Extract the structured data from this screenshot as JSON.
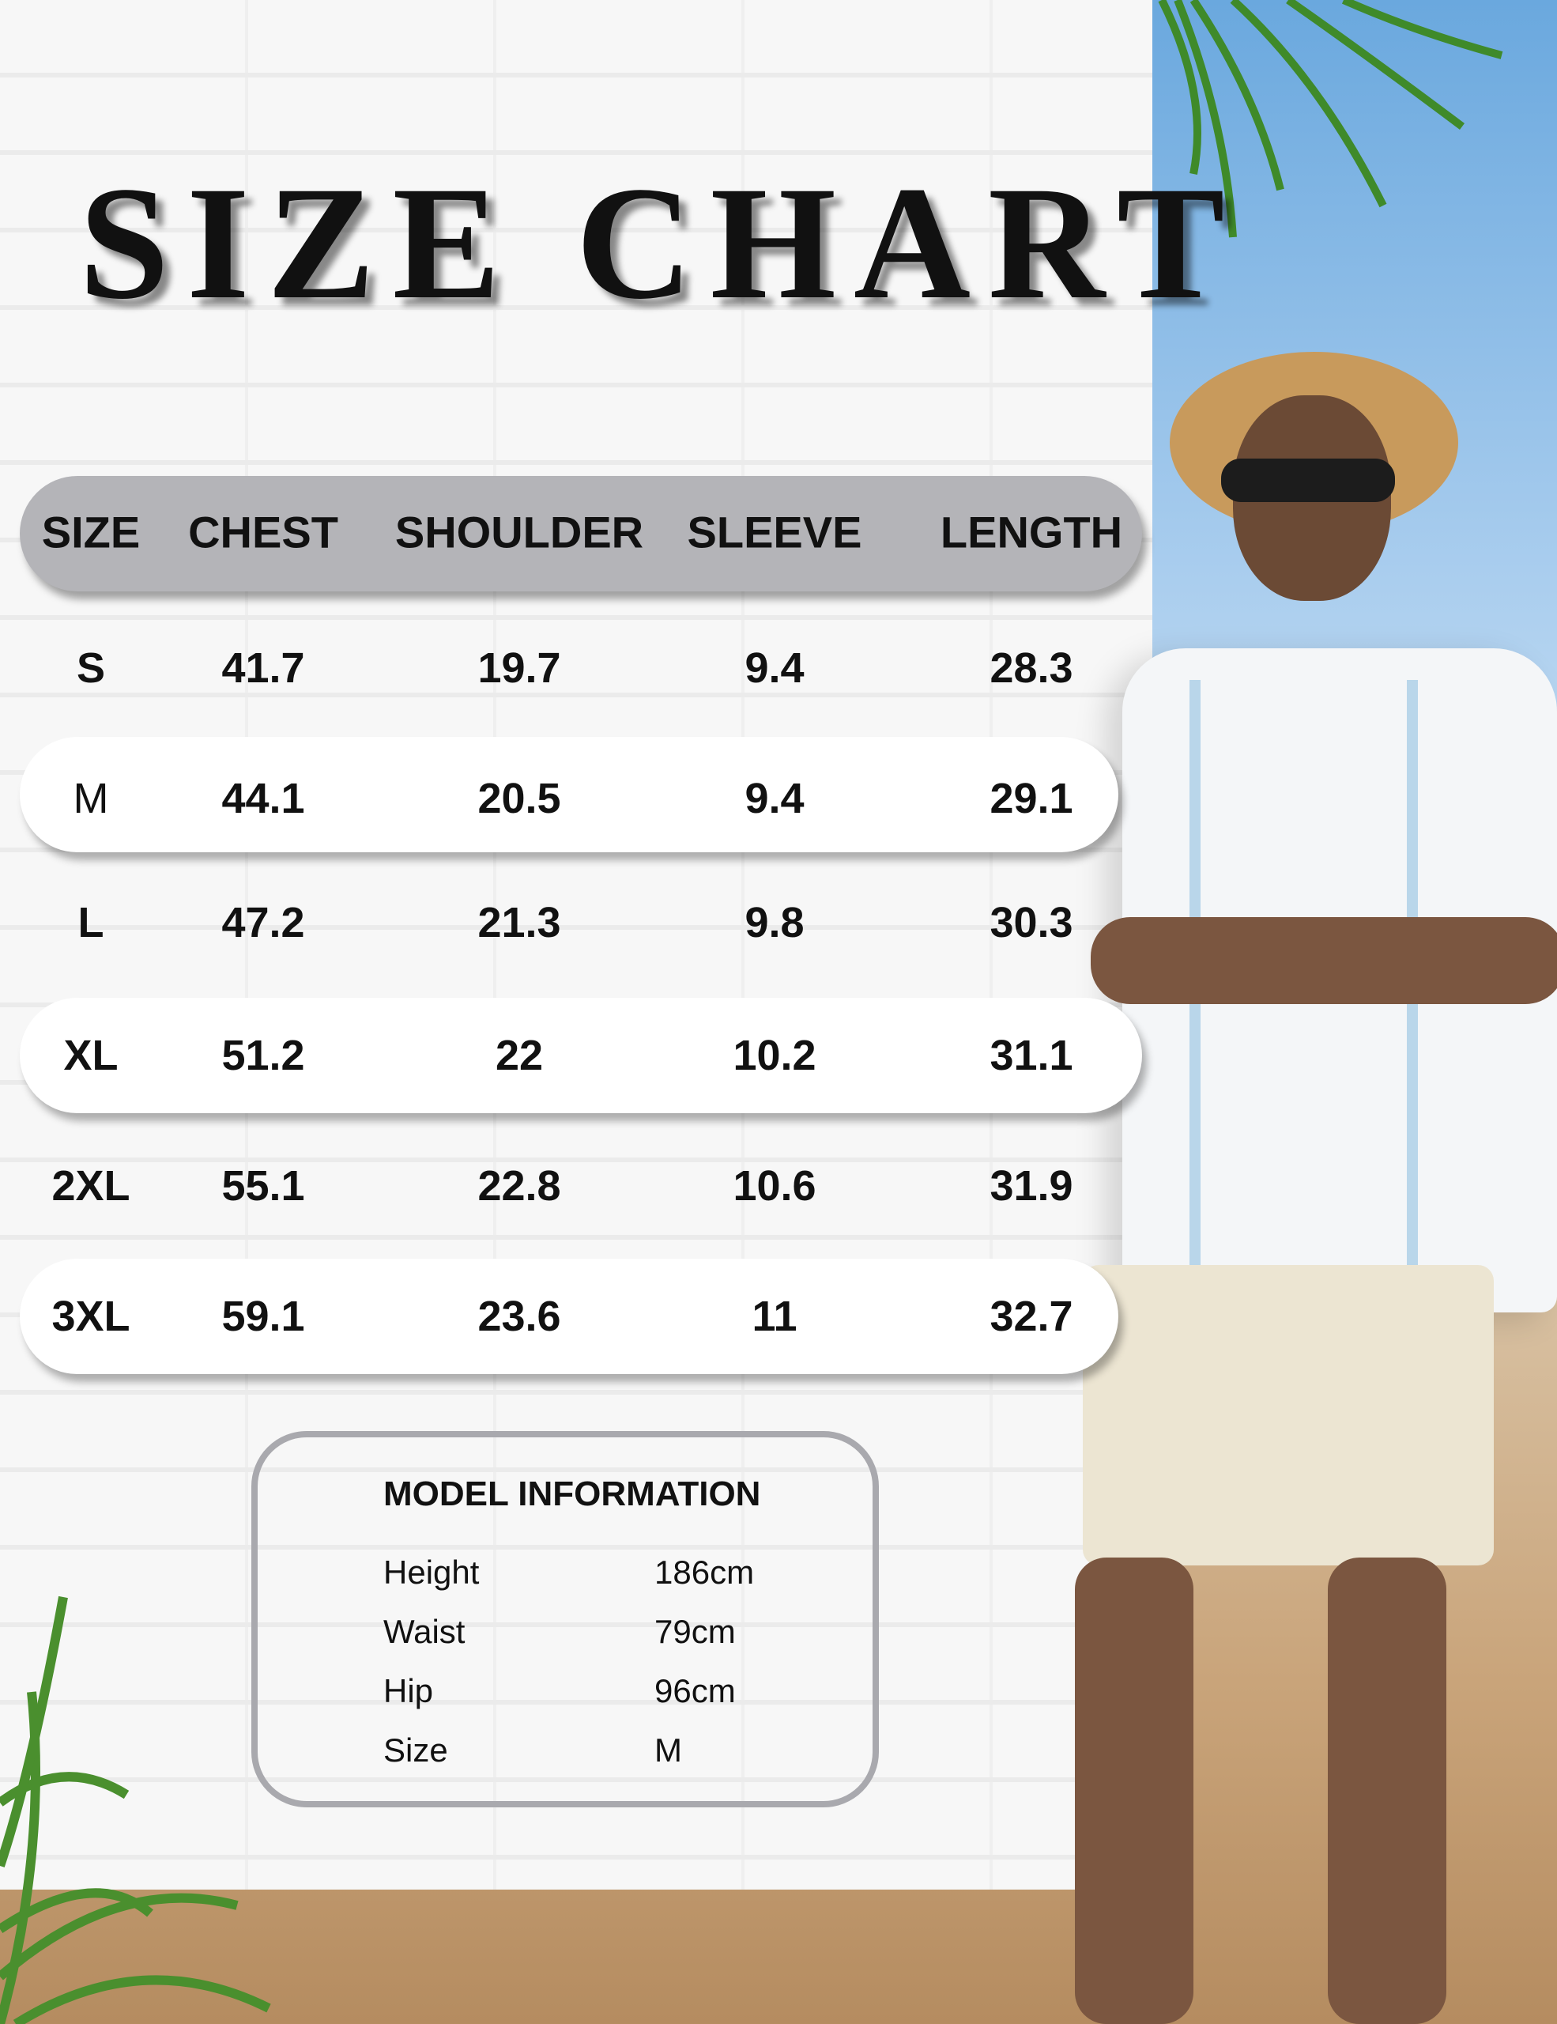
{
  "title": "SIZE CHART",
  "table": {
    "headers": [
      "SIZE",
      "CHEST",
      "SHOULDER",
      "SLEEVE",
      "LENGTH"
    ],
    "rows": [
      [
        "S",
        "41.7",
        "19.7",
        "9.4",
        "28.3"
      ],
      [
        "M",
        "44.1",
        "20.5",
        "9.4",
        "29.1"
      ],
      [
        "L",
        "47.2",
        "21.3",
        "9.8",
        "30.3"
      ],
      [
        "XL",
        "51.2",
        "22",
        "10.2",
        "31.1"
      ],
      [
        "2XL",
        "55.1",
        "22.8",
        "10.6",
        "31.9"
      ],
      [
        "3XL",
        "59.1",
        "23.6",
        "11",
        "32.7"
      ]
    ]
  },
  "model_info": {
    "title": "MODEL INFORMATION",
    "rows": [
      {
        "label": "Height",
        "value": "186cm"
      },
      {
        "label": "Waist",
        "value": "79cm"
      },
      {
        "label": "Hip",
        "value": "96cm"
      },
      {
        "label": "Size",
        "value": "M"
      }
    ]
  },
  "colors": {
    "header_bar": "#b4b4b8",
    "pill": "#ffffff",
    "text": "#111111",
    "box_border": "#a9a9ae"
  }
}
